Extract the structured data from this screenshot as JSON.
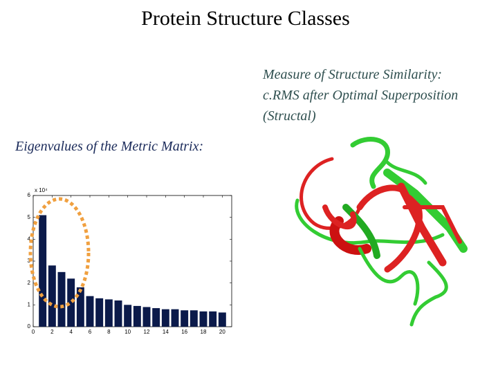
{
  "title": "Protein Structure Classes",
  "similarity_caption": [
    "Measure of Structure Similarity:",
    "c.RMS after Optimal Superposition",
    "(Structal)"
  ],
  "eigen_caption": "Eigenvalues of the Metric Matrix:",
  "chart_data": {
    "type": "bar",
    "y_multiplier": "x 10⁴",
    "x": [
      1,
      2,
      3,
      4,
      5,
      6,
      7,
      8,
      9,
      10,
      11,
      12,
      13,
      14,
      15,
      16,
      17,
      18,
      19,
      20
    ],
    "values": [
      5.1,
      2.8,
      2.5,
      2.2,
      1.8,
      1.4,
      1.3,
      1.25,
      1.2,
      1.0,
      0.95,
      0.9,
      0.85,
      0.8,
      0.8,
      0.75,
      0.75,
      0.7,
      0.7,
      0.65
    ],
    "color": "#0b1a4a",
    "xlim": [
      0,
      21
    ],
    "xticks": [
      0,
      2,
      4,
      6,
      8,
      10,
      12,
      14,
      16,
      18,
      20
    ],
    "ylim": [
      0,
      6
    ],
    "yticks": [
      0,
      1,
      2,
      3,
      4,
      5,
      6
    ]
  }
}
